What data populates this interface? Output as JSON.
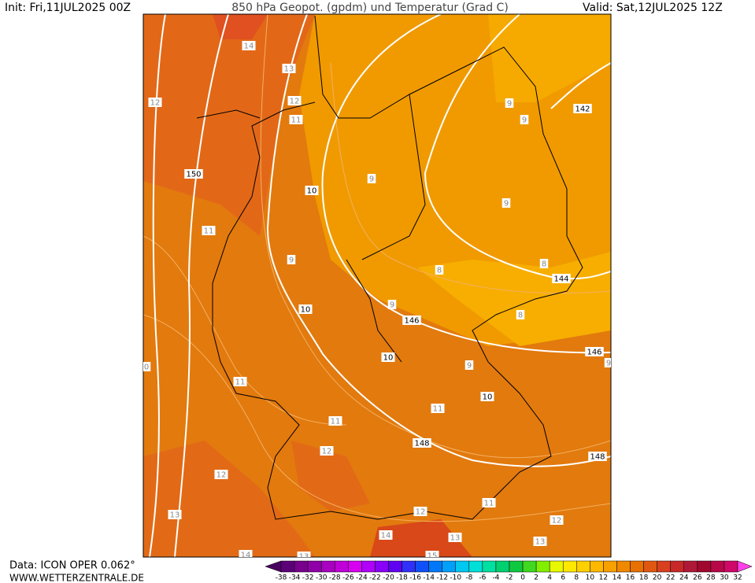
{
  "header": {
    "init": "Init: Fri,11JUL2025 00Z",
    "title": "850 hPa Geopot. (gpdm) und Temperatur (Grad C)",
    "valid": "Valid: Sat,12JUL2025 12Z"
  },
  "geopotential_labels": [
    150,
    142,
    144,
    146,
    146,
    148,
    148
  ],
  "temperature_labels": [
    14,
    13,
    12,
    12,
    11,
    9,
    9,
    10,
    9,
    9,
    11,
    9,
    8,
    8,
    9,
    8,
    10,
    10,
    9,
    9,
    0,
    11,
    10,
    11,
    11,
    12,
    12,
    11,
    12,
    12,
    13,
    13,
    13,
    14,
    14,
    13,
    15
  ],
  "footer": {
    "source": "Data: ICON OPER 0.062°",
    "site": "WWW.WETTERZENTRALE.DE"
  },
  "colorbar": {
    "labels": [
      -38,
      -34,
      -32,
      -30,
      -28,
      -26,
      -24,
      -22,
      -20,
      -18,
      -16,
      -14,
      -12,
      -10,
      -8,
      -6,
      -4,
      -2,
      0,
      2,
      4,
      6,
      8,
      10,
      12,
      14,
      16,
      18,
      20,
      22,
      24,
      26,
      28,
      30,
      32
    ],
    "colors": [
      "#4a0060",
      "#5c0078",
      "#78008c",
      "#9000a8",
      "#a800c0",
      "#c000d8",
      "#d800f0",
      "#b000f8",
      "#8800f8",
      "#6000f0",
      "#3030f8",
      "#1050f8",
      "#0078f8",
      "#00a0f8",
      "#00c8f0",
      "#00e0d8",
      "#00e0a0",
      "#00d070",
      "#10c840",
      "#40d820",
      "#80f000",
      "#e8f800",
      "#ffe800",
      "#ffd000",
      "#ffb800",
      "#f8a000",
      "#f08800",
      "#e87000",
      "#e05810",
      "#d84020",
      "#c82828",
      "#b01838",
      "#a00830",
      "#b80848",
      "#d00868",
      "#e81890",
      "#f830c8",
      "#ff40e8"
    ]
  }
}
